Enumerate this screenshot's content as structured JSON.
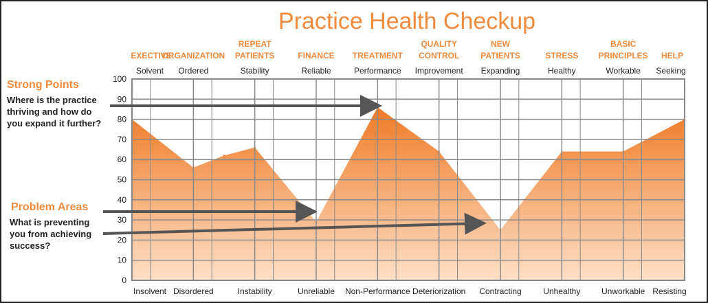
{
  "chart_data": {
    "type": "area",
    "title": "Practice Health Checkup",
    "categories": [
      "EXECTIVE",
      "ORGANIZATION",
      "REPEAT PATIENTS",
      "FINANCE",
      "TREATMENT",
      "QUALITY CONTROL",
      "NEW PATIENTS",
      "STRESS",
      "BASIC PRINCIPLES",
      "HELP"
    ],
    "top_labels": [
      "Solvent",
      "Ordered",
      "Stability",
      "Reliable",
      "Performance",
      "Improvement",
      "Expanding",
      "Healthy",
      "Workable",
      "Seeking"
    ],
    "bottom_labels": [
      "Insolvent",
      "Disordered",
      "Instability",
      "Unreliable",
      "Non-Performance",
      "Deteriorization",
      "Contracting",
      "Unhealthy",
      "Unworkable",
      "Resisting"
    ],
    "x": [
      0,
      1,
      1.5,
      2,
      3,
      4,
      5,
      6,
      7,
      8,
      9
    ],
    "values": [
      80,
      56,
      62,
      66,
      29,
      86,
      64,
      25,
      64,
      64,
      80
    ],
    "ylim": [
      0,
      100
    ],
    "yticks": [
      0,
      10,
      20,
      30,
      40,
      50,
      60,
      70,
      80,
      90,
      100
    ],
    "grid": true,
    "fill_colors": {
      "top": "#ee7a26",
      "bottom": "#fde0c8"
    },
    "colors": {
      "accent": "#f08a3c",
      "grid": "#8a8a8a",
      "arrow": "#555555"
    }
  },
  "annotations": {
    "strong_points": {
      "title": "Strong Points",
      "lines": [
        "Where is the practice",
        "thriving and how do",
        "you expand it further?"
      ]
    },
    "problem_areas": {
      "title": "Problem Areas",
      "lines": [
        "What is preventing",
        "you from achieving",
        "success?"
      ]
    }
  }
}
